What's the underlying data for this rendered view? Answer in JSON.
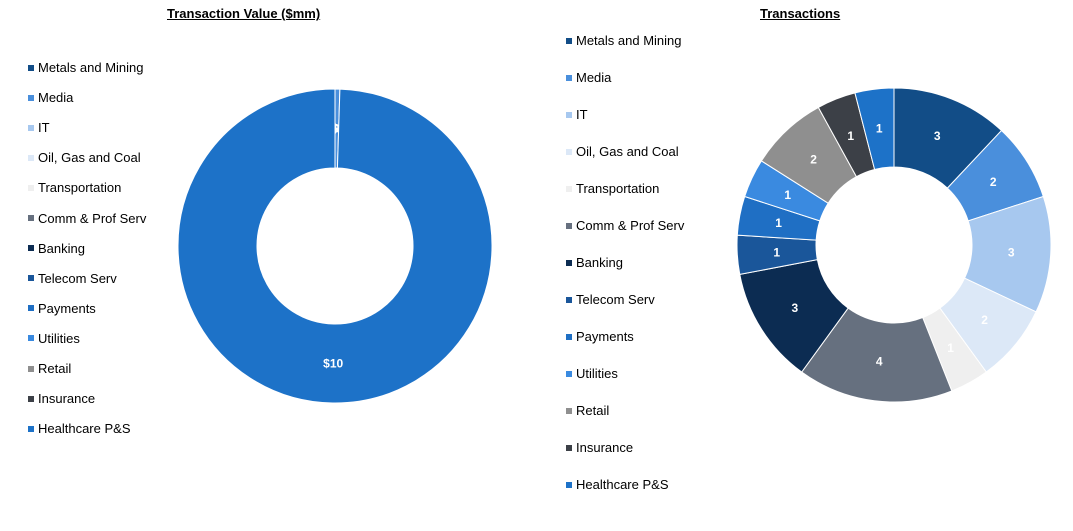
{
  "chart_data": [
    {
      "type": "pie",
      "title": "Transaction Value ($mm)",
      "hole": true,
      "legend_position": "left",
      "categories": [
        "Metals and Mining",
        "Media",
        "IT",
        "Oil, Gas and Coal",
        "Transportation",
        "Comm & Prof Serv",
        "Banking",
        "Telecom Serv",
        "Payments",
        "Utilities",
        "Retail",
        "Insurance",
        "Healthcare P&S"
      ],
      "values": [
        0,
        0.05,
        0,
        0,
        0,
        0,
        0,
        0,
        0,
        0,
        0,
        0,
        10
      ],
      "labels": [
        "$0",
        "$0",
        "$0",
        "$0",
        "$0",
        "$0",
        "$0",
        "$0",
        "$0",
        "$0",
        "$0",
        "$0",
        "$10"
      ]
    },
    {
      "type": "pie",
      "title": "Transactions",
      "hole": true,
      "legend_position": "left",
      "categories": [
        "Metals and Mining",
        "Media",
        "IT",
        "Oil, Gas and Coal",
        "Transportation",
        "Comm & Prof Serv",
        "Banking",
        "Telecom Serv",
        "Payments",
        "Utilities",
        "Retail",
        "Insurance",
        "Healthcare P&S"
      ],
      "values": [
        3,
        2,
        3,
        2,
        1,
        4,
        3,
        1,
        1,
        1,
        2,
        1,
        1
      ],
      "labels": [
        "3",
        "2",
        "3",
        "2",
        "1",
        "4",
        "3",
        "1",
        "1",
        "1",
        "2",
        "1",
        "1"
      ]
    }
  ],
  "colors": [
    "#124d87",
    "#4a8fdc",
    "#a7c8ef",
    "#dce8f7",
    "#efefef",
    "#66707f",
    "#0c2c52",
    "#1a569a",
    "#1f6fc4",
    "#3a8ae0",
    "#8f8f8f",
    "#3c4047",
    "#1d72c8"
  ],
  "label_colors": [
    "#ffffff",
    "#ffffff",
    "#ffffff",
    "#ffffff",
    "#ffffff",
    "#ffffff",
    "#ffffff",
    "#ffffff",
    "#ffffff",
    "#ffffff",
    "#ffffff",
    "#ffffff",
    "#ffffff"
  ]
}
